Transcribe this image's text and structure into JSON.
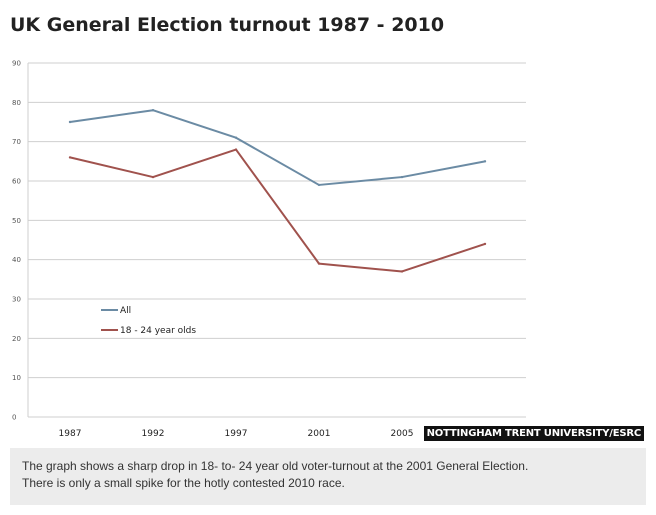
{
  "title": "UK General Election turnout 1987 - 2010",
  "credit": "NOTTINGHAM TRENT UNIVERSITY/ESRC",
  "caption": {
    "line1": "The graph shows a sharp drop in 18- to- 24 year old voter-turnout at the 2001 General Election.",
    "line2": "There is only a small spike for the hotly contested 2010 race."
  },
  "chart_data": {
    "type": "line",
    "title": "UK General Election turnout 1987 - 2010",
    "xlabel": "",
    "ylabel": "",
    "categories": [
      "1987",
      "1992",
      "1997",
      "2001",
      "2005",
      "2010"
    ],
    "y_ticks": [
      0,
      10,
      20,
      30,
      40,
      50,
      60,
      70,
      80,
      90
    ],
    "ylim": [
      0,
      90
    ],
    "grid": true,
    "legend_placement": "bottom-left",
    "series": [
      {
        "name": "All",
        "color": "#6b8ba4",
        "values": [
          75,
          78,
          71,
          59,
          61,
          65
        ]
      },
      {
        "name": "18 - 24 year olds",
        "color": "#a0524d",
        "values": [
          66,
          61,
          68,
          39,
          37,
          44
        ]
      }
    ]
  }
}
